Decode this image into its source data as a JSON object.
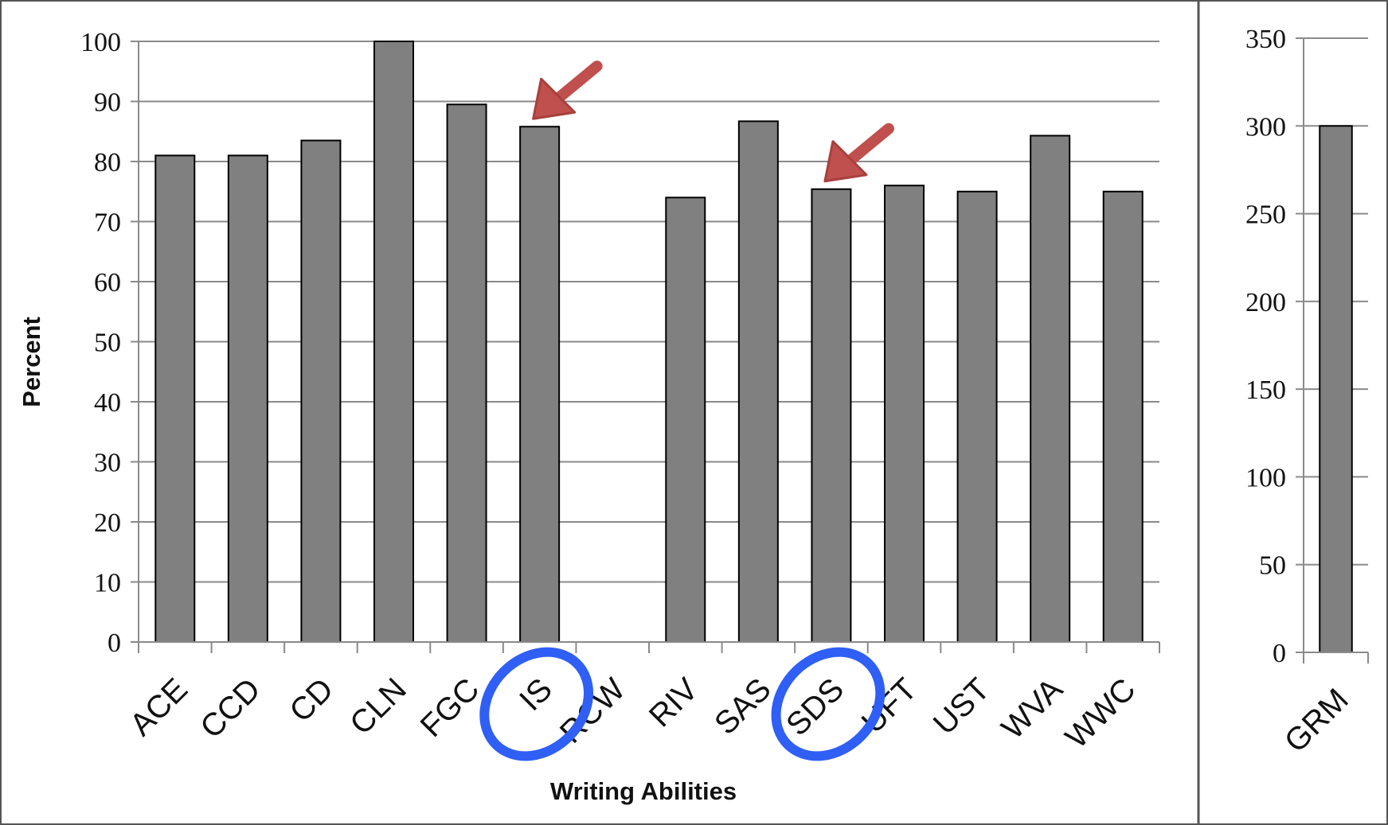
{
  "chart_data": [
    {
      "type": "bar",
      "categories": [
        "ACE",
        "CCD",
        "CD",
        "CLN",
        "FGC",
        "IS",
        "RCW",
        "RIV",
        "SAS",
        "SDS",
        "UFT",
        "UST",
        "WVA",
        "WWC"
      ],
      "values": [
        81,
        81,
        83.5,
        100,
        89.5,
        85.8,
        0,
        74,
        86.7,
        75.4,
        76,
        75,
        84.3,
        75
      ],
      "xlabel": "Writing Abilities",
      "ylabel": "Percent",
      "ylim": [
        0,
        100
      ],
      "yticks": [
        0,
        10,
        20,
        30,
        40,
        50,
        60,
        70,
        80,
        90,
        100
      ],
      "grid": true,
      "bar_color": "#808080",
      "annotations": {
        "arrows_point_to": [
          "IS",
          "SDS"
        ],
        "circled_labels": [
          "IS",
          "SDS"
        ],
        "arrow_color": "#c0504d",
        "circle_color": "#2f5ff5"
      }
    },
    {
      "type": "bar",
      "categories": [
        "GRM"
      ],
      "values": [
        300
      ],
      "ylim": [
        0,
        350
      ],
      "yticks": [
        0,
        50,
        100,
        150,
        200,
        250,
        300,
        350
      ],
      "grid": true,
      "bar_color": "#808080"
    }
  ]
}
